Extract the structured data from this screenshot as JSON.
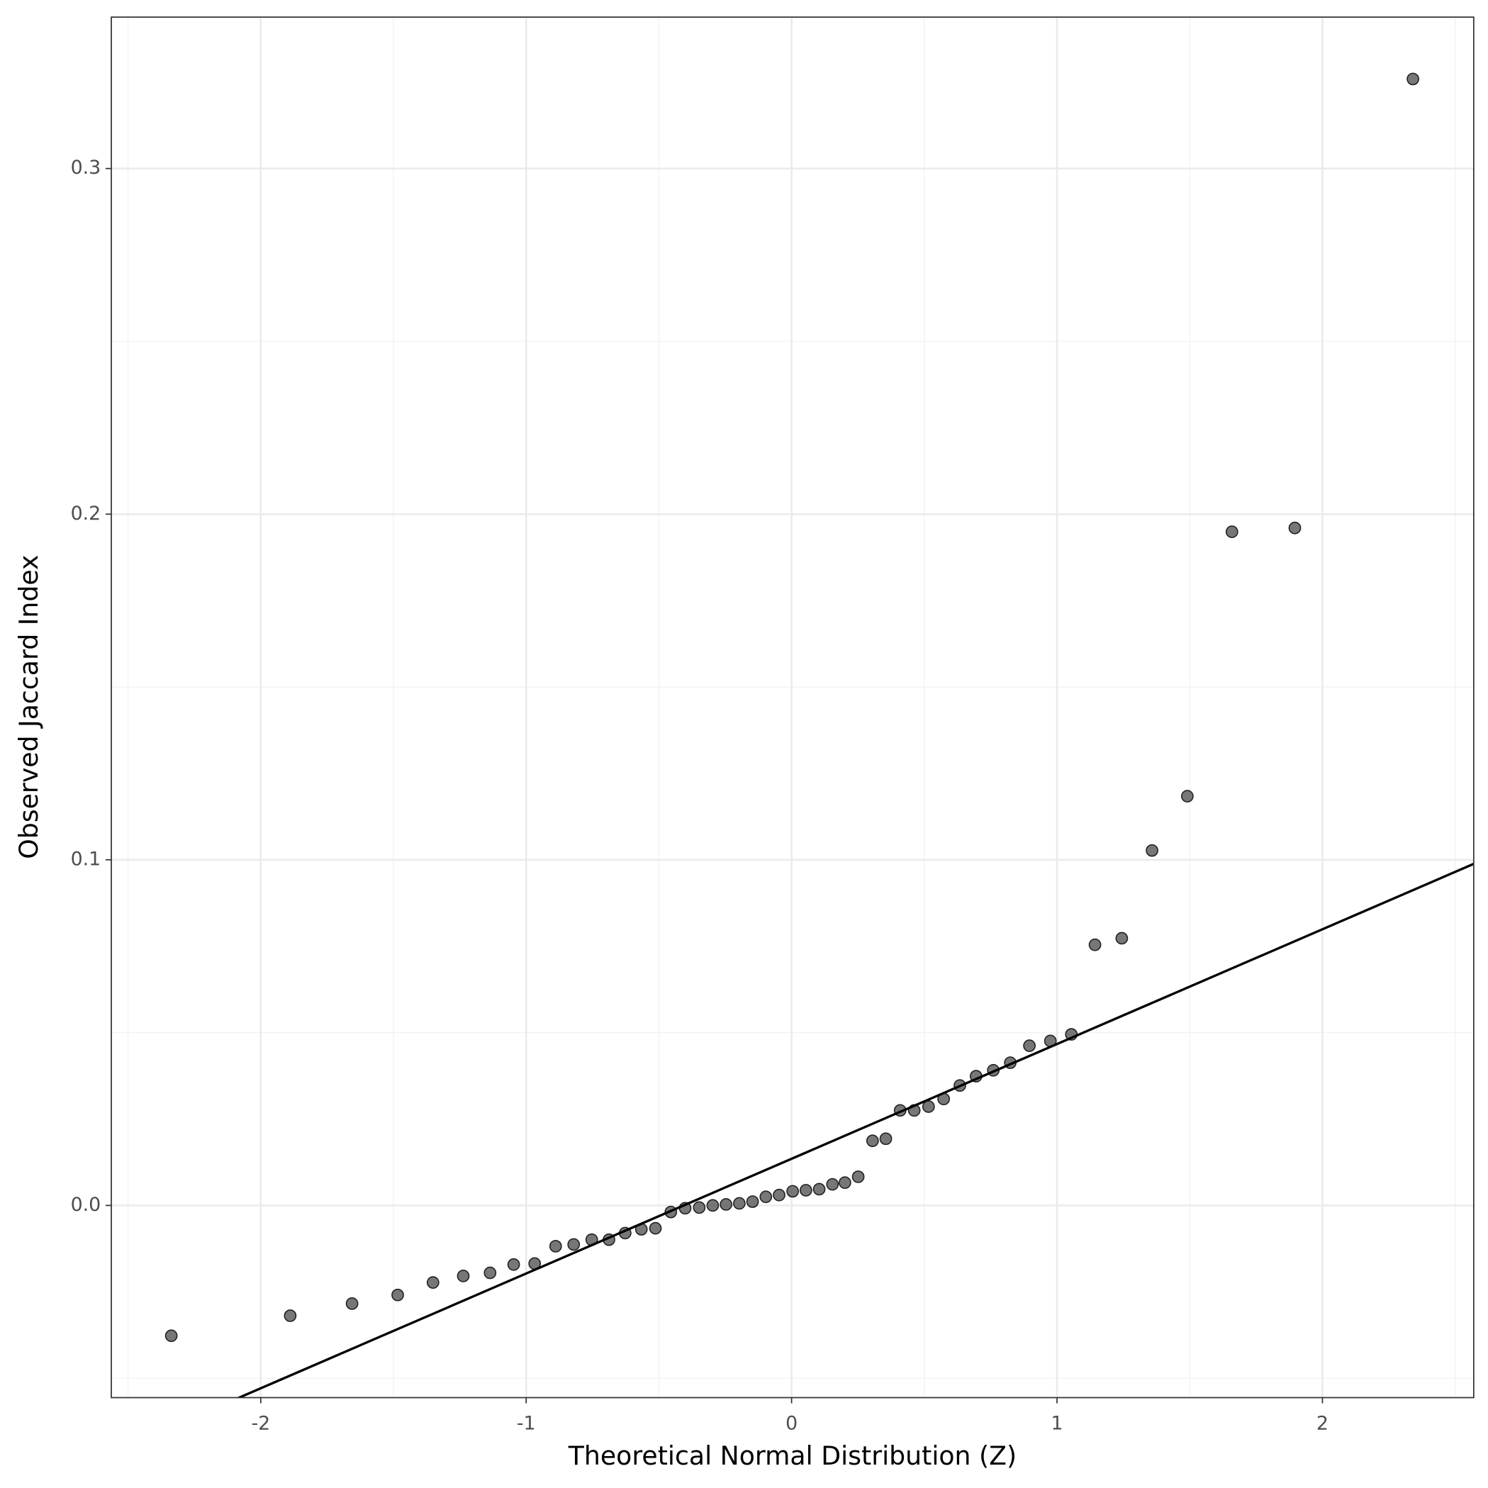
{
  "chart_data": {
    "type": "scatter",
    "x_label": "Theoretical Normal Distribution (Z)",
    "y_label": "Observed Jaccard Index",
    "x": [
      -2.337,
      -1.889,
      -1.656,
      -1.484,
      -1.351,
      -1.237,
      -1.136,
      -1.047,
      -0.968,
      -0.889,
      -0.821,
      -0.753,
      -0.688,
      -0.627,
      -0.566,
      -0.513,
      -0.455,
      -0.401,
      -0.348,
      -0.297,
      -0.247,
      -0.197,
      -0.147,
      -0.097,
      -0.047,
      0.004,
      0.054,
      0.104,
      0.154,
      0.201,
      0.251,
      0.305,
      0.355,
      0.409,
      0.462,
      0.516,
      0.573,
      0.634,
      0.695,
      0.76,
      0.824,
      0.896,
      0.975,
      1.054,
      1.143,
      1.244,
      1.358,
      1.491,
      1.659,
      1.896,
      2.341
    ],
    "values": [
      -0.0377,
      -0.0319,
      -0.0284,
      -0.0259,
      -0.0223,
      -0.0204,
      -0.0195,
      -0.0171,
      -0.0168,
      -0.0118,
      -0.0113,
      -0.0099,
      -0.0099,
      -0.008,
      -0.0069,
      -0.0066,
      -0.0019,
      -0.0008,
      -0.0006,
      0.0,
      0.0003,
      0.0006,
      0.0011,
      0.0025,
      0.003,
      0.0041,
      0.0044,
      0.0047,
      0.0061,
      0.0066,
      0.0083,
      0.0187,
      0.0193,
      0.0275,
      0.0275,
      0.0286,
      0.0308,
      0.0347,
      0.0374,
      0.0391,
      0.0413,
      0.0462,
      0.0476,
      0.0495,
      0.0754,
      0.0773,
      0.1027,
      0.1184,
      0.1949,
      0.196,
      0.3259
    ],
    "color": "#555555",
    "reference_line": {
      "intercept": 0.0135,
      "slope": 0.0332,
      "color": "#000000"
    },
    "xlim": [
      -2.563,
      2.57
    ],
    "ylim": [
      -0.0556,
      0.3438
    ],
    "xticks": [
      -2,
      -1,
      0,
      1,
      2
    ],
    "yticks": [
      {
        "value": 0,
        "label": "0.0"
      },
      0.1,
      0.2,
      0.3
    ],
    "minor_xticks": [
      -2.5,
      -1.5,
      -0.5,
      0.5,
      1.5,
      2.5
    ],
    "minor_yticks": [
      -0.05,
      0.05,
      0.15,
      0.25
    ],
    "grid": true
  }
}
